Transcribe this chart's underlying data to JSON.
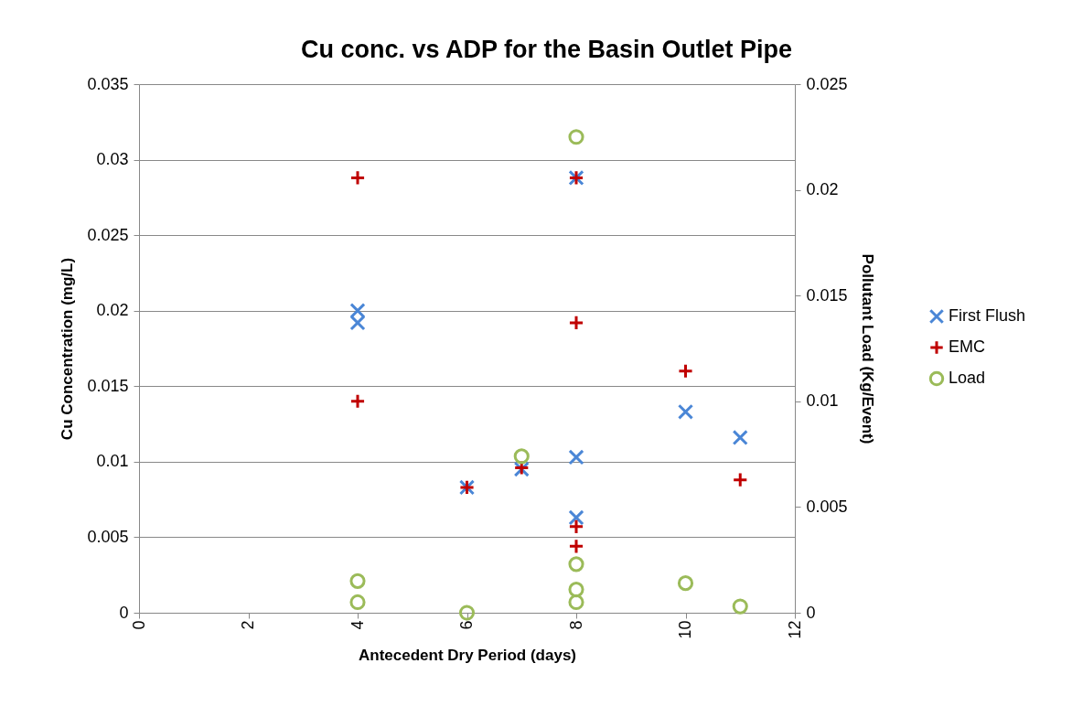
{
  "chart_data": {
    "type": "scatter",
    "title": "Cu conc. vs ADP for the Basin Outlet Pipe",
    "xlabel": "Antecedent Dry Period (days)",
    "ylabel": "Cu Concentration (mg/L)",
    "y2label": "Pollutant Load (Kg/Event)",
    "xlim": [
      0,
      12
    ],
    "xticks": [
      0,
      2,
      4,
      6,
      8,
      10,
      12
    ],
    "ylim": [
      0,
      0.035
    ],
    "yticks": [
      0,
      0.005,
      0.01,
      0.015,
      0.02,
      0.025,
      0.03,
      0.035
    ],
    "y2lim": [
      0,
      0.025
    ],
    "y2ticks": [
      0,
      0.005,
      0.01,
      0.015,
      0.02,
      0.025
    ],
    "grid": "y",
    "legend": "right",
    "series": [
      {
        "name": "First Flush",
        "color": "#4a86d6",
        "marker": "x",
        "x": [
          4,
          4,
          6,
          7,
          8,
          8,
          8,
          10,
          11
        ],
        "values": [
          0.02,
          0.0192,
          0.0083,
          0.0095,
          0.0288,
          0.0103,
          0.0063,
          0.0133,
          0.0116
        ]
      },
      {
        "name": "EMC",
        "color": "#c00000",
        "marker": "cross",
        "x": [
          4,
          4,
          6,
          7,
          8,
          8,
          8,
          8,
          10,
          11
        ],
        "values": [
          0.0288,
          0.014,
          0.0083,
          0.0096,
          0.0288,
          0.0192,
          0.0057,
          0.0044,
          0.016,
          0.0088
        ]
      },
      {
        "name": "Load",
        "color": "#9bbb59",
        "marker": "circle",
        "axis": "y2",
        "x": [
          4,
          4,
          6,
          7,
          8,
          8,
          8,
          8,
          10,
          11
        ],
        "values": [
          0.0015,
          0.0005,
          0,
          0.0074,
          0.0225,
          0.0023,
          0.0011,
          0.0005,
          0.0014,
          0.0003
        ]
      }
    ]
  }
}
